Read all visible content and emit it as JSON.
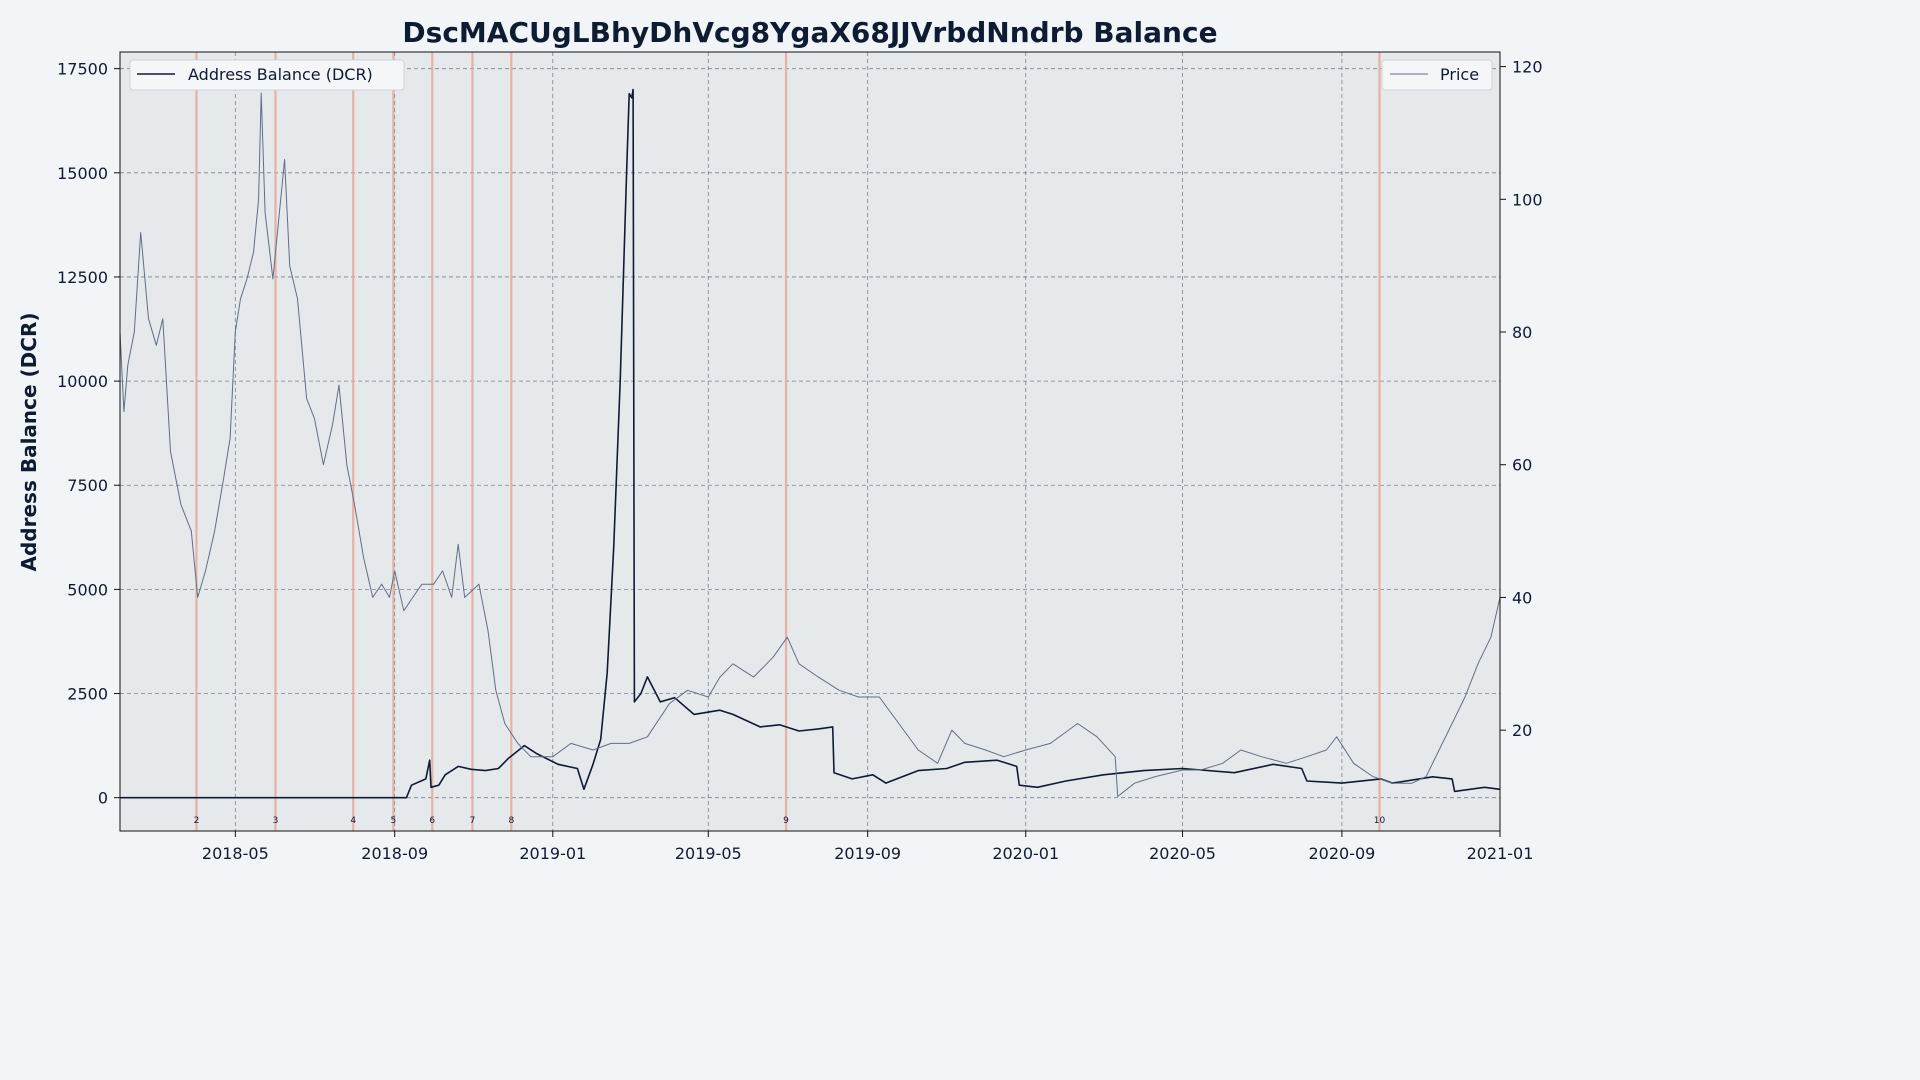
{
  "chart_data": {
    "type": "line",
    "title": "DscMACUgLBhyDhVcg8YgaX68JJVrbdNndrb Balance",
    "ylabel": "Address Balance (DCR)",
    "ylabel_right": "",
    "xlim": [
      "2018-02-01",
      "2021-01-01"
    ],
    "ylim": [
      -800,
      17900
    ],
    "ylim_right": [
      4.8,
      122.2
    ],
    "yticks": [
      0,
      2500,
      5000,
      7500,
      10000,
      12500,
      15000,
      17500
    ],
    "yticks_right": [
      20,
      40,
      60,
      80,
      100,
      120
    ],
    "xticks": [
      "2018-05",
      "2018-09",
      "2019-01",
      "2019-05",
      "2019-09",
      "2020-01",
      "2020-05",
      "2020-09",
      "2021-01"
    ],
    "grid": true,
    "legend_left": "top-left",
    "legend_right": "top-right",
    "colors": {
      "balance": "#0f1b33",
      "price": "#5f6f86",
      "marker": "#e8a898",
      "plot_bg": "#e6e9ec",
      "grid": "#5a6680"
    },
    "series": [
      {
        "name": "Address Balance (DCR)",
        "axis": "left",
        "points": [
          [
            "2018-02-01",
            0
          ],
          [
            "2018-09-10",
            0
          ],
          [
            "2018-09-14",
            300
          ],
          [
            "2018-09-25",
            450
          ],
          [
            "2018-09-28",
            900
          ],
          [
            "2018-09-29",
            250
          ],
          [
            "2018-10-05",
            300
          ],
          [
            "2018-10-10",
            550
          ],
          [
            "2018-10-20",
            750
          ],
          [
            "2018-10-30",
            680
          ],
          [
            "2018-11-10",
            650
          ],
          [
            "2018-11-20",
            700
          ],
          [
            "2018-11-28",
            950
          ],
          [
            "2018-12-10",
            1250
          ],
          [
            "2018-12-20",
            1050
          ],
          [
            "2019-01-05",
            800
          ],
          [
            "2019-01-20",
            700
          ],
          [
            "2019-01-25",
            200
          ],
          [
            "2019-02-01",
            800
          ],
          [
            "2019-02-07",
            1400
          ],
          [
            "2019-02-12",
            3000
          ],
          [
            "2019-02-17",
            6000
          ],
          [
            "2019-02-22",
            10000
          ],
          [
            "2019-02-27",
            15000
          ],
          [
            "2019-03-01",
            16900
          ],
          [
            "2019-03-03",
            16800
          ],
          [
            "2019-03-04",
            17000
          ],
          [
            "2019-03-05",
            2300
          ],
          [
            "2019-03-10",
            2500
          ],
          [
            "2019-03-15",
            2900
          ],
          [
            "2019-03-25",
            2300
          ],
          [
            "2019-04-05",
            2400
          ],
          [
            "2019-04-20",
            2000
          ],
          [
            "2019-05-10",
            2100
          ],
          [
            "2019-05-20",
            2000
          ],
          [
            "2019-06-10",
            1700
          ],
          [
            "2019-06-25",
            1750
          ],
          [
            "2019-07-10",
            1600
          ],
          [
            "2019-07-25",
            1650
          ],
          [
            "2019-08-05",
            1700
          ],
          [
            "2019-08-06",
            600
          ],
          [
            "2019-08-20",
            450
          ],
          [
            "2019-09-05",
            550
          ],
          [
            "2019-09-15",
            350
          ],
          [
            "2019-10-10",
            650
          ],
          [
            "2019-11-01",
            700
          ],
          [
            "2019-11-15",
            850
          ],
          [
            "2019-12-10",
            900
          ],
          [
            "2019-12-25",
            750
          ],
          [
            "2019-12-27",
            300
          ],
          [
            "2020-01-10",
            250
          ],
          [
            "2020-02-01",
            400
          ],
          [
            "2020-03-01",
            550
          ],
          [
            "2020-04-01",
            650
          ],
          [
            "2020-05-01",
            700
          ],
          [
            "2020-06-10",
            600
          ],
          [
            "2020-07-10",
            800
          ],
          [
            "2020-08-01",
            700
          ],
          [
            "2020-08-05",
            400
          ],
          [
            "2020-09-01",
            350
          ],
          [
            "2020-10-01",
            450
          ],
          [
            "2020-10-10",
            350
          ],
          [
            "2020-11-10",
            500
          ],
          [
            "2020-11-25",
            450
          ],
          [
            "2020-11-27",
            150
          ],
          [
            "2020-12-20",
            250
          ],
          [
            "2021-01-01",
            200
          ]
        ]
      },
      {
        "name": "Price",
        "axis": "right",
        "points": [
          [
            "2018-02-01",
            80
          ],
          [
            "2018-02-04",
            68
          ],
          [
            "2018-02-07",
            75
          ],
          [
            "2018-02-12",
            80
          ],
          [
            "2018-02-17",
            95
          ],
          [
            "2018-02-23",
            82
          ],
          [
            "2018-03-01",
            78
          ],
          [
            "2018-03-06",
            82
          ],
          [
            "2018-03-12",
            62
          ],
          [
            "2018-03-20",
            54
          ],
          [
            "2018-03-28",
            50
          ],
          [
            "2018-04-02",
            40
          ],
          [
            "2018-04-08",
            44
          ],
          [
            "2018-04-15",
            50
          ],
          [
            "2018-04-22",
            58
          ],
          [
            "2018-04-27",
            64
          ],
          [
            "2018-05-01",
            80
          ],
          [
            "2018-05-05",
            85
          ],
          [
            "2018-05-10",
            88
          ],
          [
            "2018-05-15",
            92
          ],
          [
            "2018-05-19",
            100
          ],
          [
            "2018-05-21",
            116
          ],
          [
            "2018-05-24",
            98
          ],
          [
            "2018-05-30",
            88
          ],
          [
            "2018-06-05",
            100
          ],
          [
            "2018-06-08",
            106
          ],
          [
            "2018-06-12",
            90
          ],
          [
            "2018-06-18",
            85
          ],
          [
            "2018-06-25",
            70
          ],
          [
            "2018-07-01",
            67
          ],
          [
            "2018-07-08",
            60
          ],
          [
            "2018-07-15",
            66
          ],
          [
            "2018-07-20",
            72
          ],
          [
            "2018-07-26",
            60
          ],
          [
            "2018-08-01",
            54
          ],
          [
            "2018-08-08",
            46
          ],
          [
            "2018-08-15",
            40
          ],
          [
            "2018-08-22",
            42
          ],
          [
            "2018-08-28",
            40
          ],
          [
            "2018-09-01",
            44
          ],
          [
            "2018-09-08",
            38
          ],
          [
            "2018-09-15",
            40
          ],
          [
            "2018-09-22",
            42
          ],
          [
            "2018-10-01",
            42
          ],
          [
            "2018-10-08",
            44
          ],
          [
            "2018-10-15",
            40
          ],
          [
            "2018-10-20",
            48
          ],
          [
            "2018-10-25",
            40
          ],
          [
            "2018-11-05",
            42
          ],
          [
            "2018-11-12",
            35
          ],
          [
            "2018-11-18",
            26
          ],
          [
            "2018-11-25",
            21
          ],
          [
            "2018-12-05",
            18
          ],
          [
            "2018-12-15",
            16
          ],
          [
            "2019-01-01",
            16
          ],
          [
            "2019-01-15",
            18
          ],
          [
            "2019-02-01",
            17
          ],
          [
            "2019-02-15",
            18
          ],
          [
            "2019-03-01",
            18
          ],
          [
            "2019-03-15",
            19
          ],
          [
            "2019-04-01",
            24
          ],
          [
            "2019-04-15",
            26
          ],
          [
            "2019-05-01",
            25
          ],
          [
            "2019-05-10",
            28
          ],
          [
            "2019-05-20",
            30
          ],
          [
            "2019-06-05",
            28
          ],
          [
            "2019-06-20",
            31
          ],
          [
            "2019-07-01",
            34
          ],
          [
            "2019-07-10",
            30
          ],
          [
            "2019-07-25",
            28
          ],
          [
            "2019-08-10",
            26
          ],
          [
            "2019-08-25",
            25
          ],
          [
            "2019-09-10",
            25
          ],
          [
            "2019-09-25",
            21
          ],
          [
            "2019-10-10",
            17
          ],
          [
            "2019-10-25",
            15
          ],
          [
            "2019-11-05",
            20
          ],
          [
            "2019-11-15",
            18
          ],
          [
            "2019-12-01",
            17
          ],
          [
            "2019-12-15",
            16
          ],
          [
            "2020-01-01",
            17
          ],
          [
            "2020-01-20",
            18
          ],
          [
            "2020-02-10",
            21
          ],
          [
            "2020-02-25",
            19
          ],
          [
            "2020-03-10",
            16
          ],
          [
            "2020-03-12",
            10
          ],
          [
            "2020-03-25",
            12
          ],
          [
            "2020-04-10",
            13
          ],
          [
            "2020-05-01",
            14
          ],
          [
            "2020-05-15",
            14
          ],
          [
            "2020-06-01",
            15
          ],
          [
            "2020-06-15",
            17
          ],
          [
            "2020-07-01",
            16
          ],
          [
            "2020-07-20",
            15
          ],
          [
            "2020-08-05",
            16
          ],
          [
            "2020-08-20",
            17
          ],
          [
            "2020-08-28",
            19
          ],
          [
            "2020-09-10",
            15
          ],
          [
            "2020-09-25",
            13
          ],
          [
            "2020-10-10",
            12
          ],
          [
            "2020-10-25",
            12
          ],
          [
            "2020-11-05",
            13
          ],
          [
            "2020-11-15",
            17
          ],
          [
            "2020-11-25",
            21
          ],
          [
            "2020-12-05",
            25
          ],
          [
            "2020-12-15",
            30
          ],
          [
            "2020-12-25",
            34
          ],
          [
            "2021-01-01",
            40
          ]
        ]
      }
    ],
    "markers": [
      {
        "label": "2",
        "date": "2018-04-01"
      },
      {
        "label": "3",
        "date": "2018-06-01"
      },
      {
        "label": "4",
        "date": "2018-07-31"
      },
      {
        "label": "5",
        "date": "2018-08-31"
      },
      {
        "label": "6",
        "date": "2018-09-30"
      },
      {
        "label": "7",
        "date": "2018-10-31"
      },
      {
        "label": "8",
        "date": "2018-11-30"
      },
      {
        "label": "9",
        "date": "2019-06-30"
      },
      {
        "label": "10",
        "date": "2020-09-30"
      }
    ]
  }
}
